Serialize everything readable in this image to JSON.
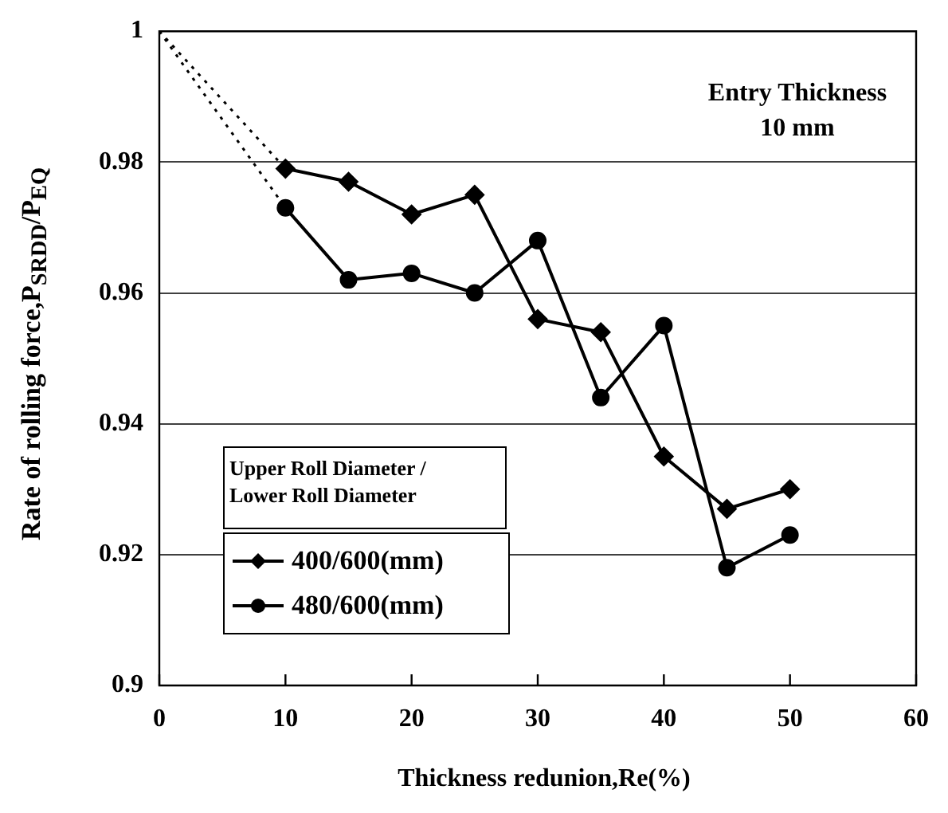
{
  "chart_data": {
    "type": "line",
    "xlabel": "Thickness redunion,Re(%)",
    "ylabel": "Rate of rolling force,P$_{SRDD}$/P$_{EQ}$",
    "legend_title": "Upper Roll Diameter / Lower Roll Diameter",
    "annotations": [
      "Entry Thickness 10 mm"
    ],
    "xlim": [
      0,
      60
    ],
    "xticks": [
      0,
      10,
      20,
      30,
      40,
      50,
      60
    ],
    "ylim": [
      0.9,
      1
    ],
    "yticks": [
      0.9,
      0.92,
      0.94,
      0.96,
      0.98,
      1
    ],
    "grid": "y",
    "legend": "bottom left",
    "series": [
      {
        "name": "400/600(mm)",
        "color": "#000000",
        "marker": "diamond",
        "x": [
          10,
          15,
          20,
          25,
          30,
          35,
          40,
          45,
          50
        ],
        "values": [
          0.979,
          0.977,
          0.972,
          0.975,
          0.956,
          0.954,
          0.935,
          0.927,
          0.93
        ]
      },
      {
        "name": "480/600(mm)",
        "color": "#000000",
        "marker": "circle",
        "x": [
          10,
          15,
          20,
          25,
          30,
          35,
          40,
          45,
          50
        ],
        "values": [
          0.973,
          0.962,
          0.963,
          0.96,
          0.968,
          0.944,
          0.955,
          0.918,
          0.923
        ]
      },
      {
        "color": "#000000",
        "marker": "none",
        "line_style": "dotted",
        "x": [
          0,
          10
        ],
        "values": [
          1,
          0.979
        ]
      },
      {
        "color": "#000000",
        "marker": "none",
        "line_style": "dotted",
        "x": [
          0,
          10
        ],
        "values": [
          1,
          0.973
        ]
      }
    ]
  }
}
